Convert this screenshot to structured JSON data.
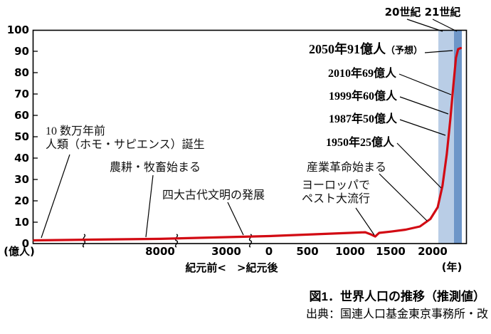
{
  "chart_data": {
    "type": "line",
    "title": "図1．世界人口の推移（推測値）",
    "ylabel": "(億人)",
    "x_unit": "(年)",
    "x_axis_note": "紀元前<　>紀元後",
    "ylim": [
      0,
      100
    ],
    "y_ticks": [
      0,
      10,
      20,
      30,
      40,
      50,
      60,
      70,
      80,
      90,
      100
    ],
    "x_ticks": [
      "8000",
      "3000",
      "0",
      "500",
      "1000",
      "1500",
      "2000"
    ],
    "axis_break_count": 3,
    "series_name": "世界人口（億人）",
    "line_color": "#d20a13",
    "milestones": [
      {
        "year": 1950,
        "population_oku": 25,
        "label": "1950年25億人"
      },
      {
        "year": 1987,
        "population_oku": 50,
        "label": "1987年50億人"
      },
      {
        "year": 1999,
        "population_oku": 60,
        "label": "1999年60億人"
      },
      {
        "year": 2010,
        "population_oku": 69,
        "label": "2010年69億人"
      },
      {
        "year": 2050,
        "population_oku": 91,
        "label": "2050年91億人",
        "note": "（予想）",
        "predicted": true
      }
    ],
    "events": [
      {
        "text": "10 数万年前\n人類（ホモ・サピエンス）誕生"
      },
      {
        "text": "農耕・牧畜始まる"
      },
      {
        "text": "四大古代文明の発展"
      },
      {
        "text": "ヨーロッパで\nペスト大流行"
      },
      {
        "text": "産業革命始まる"
      }
    ],
    "bands": [
      {
        "label": "20世紀",
        "color": "#b9cde6"
      },
      {
        "label": "21世紀",
        "color": "#6e96c8"
      }
    ],
    "curve_points": [
      [
        0.003,
        1.5
      ],
      [
        0.121,
        1.8
      ],
      [
        0.293,
        2.2
      ],
      [
        0.446,
        3.0
      ],
      [
        0.544,
        3.5
      ],
      [
        0.633,
        4.2
      ],
      [
        0.731,
        5.0
      ],
      [
        0.766,
        5.3
      ],
      [
        0.78,
        4.2
      ],
      [
        0.789,
        3.3
      ],
      [
        0.798,
        5.0
      ],
      [
        0.825,
        5.6
      ],
      [
        0.859,
        6.5
      ],
      [
        0.892,
        8.0
      ],
      [
        0.916,
        11.5
      ],
      [
        0.933,
        17
      ],
      [
        0.944,
        27
      ],
      [
        0.954,
        42
      ],
      [
        0.962,
        58
      ],
      [
        0.969,
        74
      ],
      [
        0.975,
        87
      ],
      [
        0.98,
        91
      ],
      [
        0.986,
        91.5
      ]
    ]
  },
  "caption": {
    "title": "図1．世界人口の推移（推測値）",
    "source": "出典：国連人口基金東京事務所・改"
  }
}
